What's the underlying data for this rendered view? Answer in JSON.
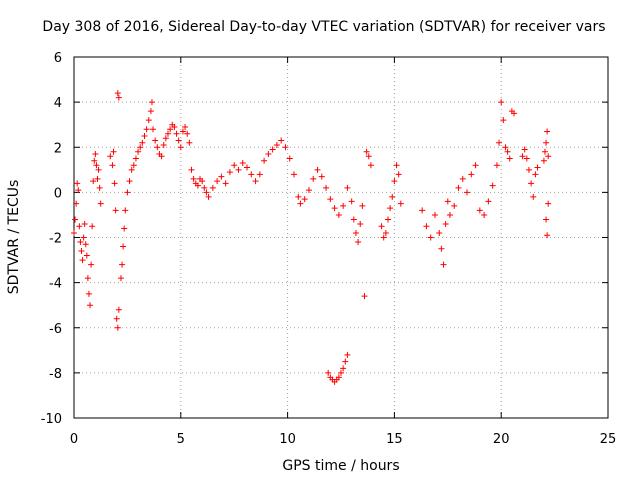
{
  "chart_data": {
    "type": "scatter",
    "title": "Day 308 of 2016, Sidereal Day-to-day VTEC variation (SDTVAR) for receiver vars",
    "xlabel": "GPS time / hours",
    "ylabel": "SDTVAR / TECUs",
    "xlim": [
      0,
      25
    ],
    "ylim": [
      -10,
      6
    ],
    "xticks": [
      0,
      5,
      10,
      15,
      20,
      25
    ],
    "yticks": [
      -10,
      -8,
      -6,
      -4,
      -2,
      0,
      2,
      4,
      6
    ],
    "grid": true,
    "marker": "+",
    "marker_color": "#ff0000",
    "series": [
      {
        "name": "SDTVAR",
        "points": [
          [
            0.0,
            -1.8
          ],
          [
            0.05,
            -1.2
          ],
          [
            0.1,
            -0.5
          ],
          [
            0.15,
            0.4
          ],
          [
            0.2,
            0.1
          ],
          [
            0.25,
            -1.5
          ],
          [
            0.3,
            -2.2
          ],
          [
            0.35,
            -2.6
          ],
          [
            0.4,
            -3.0
          ],
          [
            0.45,
            -2.0
          ],
          [
            0.5,
            -1.4
          ],
          [
            0.55,
            -2.3
          ],
          [
            0.6,
            -2.8
          ],
          [
            0.65,
            -3.8
          ],
          [
            0.7,
            -4.5
          ],
          [
            0.75,
            -5.0
          ],
          [
            0.8,
            -3.2
          ],
          [
            0.85,
            -1.5
          ],
          [
            0.9,
            0.5
          ],
          [
            0.95,
            1.4
          ],
          [
            1.0,
            1.7
          ],
          [
            1.05,
            1.2
          ],
          [
            1.1,
            0.6
          ],
          [
            1.15,
            1.0
          ],
          [
            1.2,
            0.2
          ],
          [
            1.25,
            -0.5
          ],
          [
            1.7,
            1.6
          ],
          [
            1.8,
            1.2
          ],
          [
            1.85,
            1.8
          ],
          [
            1.9,
            0.4
          ],
          [
            1.95,
            -0.8
          ],
          [
            2.0,
            -5.6
          ],
          [
            2.05,
            -6.0
          ],
          [
            2.1,
            -5.2
          ],
          [
            2.05,
            4.4
          ],
          [
            2.1,
            4.2
          ],
          [
            2.2,
            -3.8
          ],
          [
            2.25,
            -3.2
          ],
          [
            2.3,
            -2.4
          ],
          [
            2.35,
            -1.6
          ],
          [
            2.4,
            -0.8
          ],
          [
            2.5,
            0.0
          ],
          [
            2.6,
            0.5
          ],
          [
            2.7,
            1.0
          ],
          [
            2.8,
            1.2
          ],
          [
            2.9,
            1.5
          ],
          [
            3.0,
            1.8
          ],
          [
            3.1,
            2.0
          ],
          [
            3.2,
            2.2
          ],
          [
            3.3,
            2.5
          ],
          [
            3.4,
            2.8
          ],
          [
            3.5,
            3.2
          ],
          [
            3.6,
            3.6
          ],
          [
            3.65,
            4.0
          ],
          [
            3.7,
            2.8
          ],
          [
            3.8,
            2.3
          ],
          [
            3.9,
            2.0
          ],
          [
            4.0,
            1.7
          ],
          [
            4.1,
            1.6
          ],
          [
            4.2,
            2.1
          ],
          [
            4.3,
            2.4
          ],
          [
            4.4,
            2.6
          ],
          [
            4.5,
            2.8
          ],
          [
            4.6,
            3.0
          ],
          [
            4.7,
            2.9
          ],
          [
            4.8,
            2.6
          ],
          [
            4.9,
            2.3
          ],
          [
            5.0,
            2.0
          ],
          [
            5.1,
            2.7
          ],
          [
            5.2,
            2.9
          ],
          [
            5.3,
            2.6
          ],
          [
            5.4,
            2.2
          ],
          [
            5.5,
            1.0
          ],
          [
            5.6,
            0.6
          ],
          [
            5.7,
            0.4
          ],
          [
            5.8,
            0.3
          ],
          [
            5.9,
            0.6
          ],
          [
            6.0,
            0.5
          ],
          [
            6.1,
            0.2
          ],
          [
            6.2,
            0.0
          ],
          [
            6.3,
            -0.2
          ],
          [
            6.5,
            0.2
          ],
          [
            6.7,
            0.5
          ],
          [
            6.9,
            0.7
          ],
          [
            7.1,
            0.4
          ],
          [
            7.3,
            0.9
          ],
          [
            7.5,
            1.2
          ],
          [
            7.7,
            1.0
          ],
          [
            7.9,
            1.3
          ],
          [
            8.1,
            1.1
          ],
          [
            8.3,
            0.8
          ],
          [
            8.5,
            0.5
          ],
          [
            8.7,
            0.8
          ],
          [
            8.9,
            1.4
          ],
          [
            9.1,
            1.7
          ],
          [
            9.3,
            1.9
          ],
          [
            9.5,
            2.1
          ],
          [
            9.7,
            2.3
          ],
          [
            9.9,
            2.0
          ],
          [
            10.1,
            1.5
          ],
          [
            10.3,
            0.8
          ],
          [
            10.5,
            -0.2
          ],
          [
            10.6,
            -0.5
          ],
          [
            10.8,
            -0.3
          ],
          [
            11.0,
            0.1
          ],
          [
            11.2,
            0.6
          ],
          [
            11.4,
            1.0
          ],
          [
            11.6,
            0.7
          ],
          [
            11.8,
            0.2
          ],
          [
            12.0,
            -0.3
          ],
          [
            12.2,
            -0.7
          ],
          [
            12.4,
            -1.0
          ],
          [
            12.6,
            -0.6
          ],
          [
            12.8,
            0.2
          ],
          [
            13.0,
            -0.4
          ],
          [
            13.1,
            -1.2
          ],
          [
            13.2,
            -1.8
          ],
          [
            13.3,
            -2.2
          ],
          [
            13.4,
            -1.4
          ],
          [
            13.5,
            -0.6
          ],
          [
            13.6,
            -4.6
          ],
          [
            13.7,
            1.8
          ],
          [
            13.8,
            1.6
          ],
          [
            13.9,
            1.2
          ],
          [
            11.9,
            -8.0
          ],
          [
            12.0,
            -8.2
          ],
          [
            12.1,
            -8.3
          ],
          [
            12.2,
            -8.4
          ],
          [
            12.3,
            -8.3
          ],
          [
            12.4,
            -8.2
          ],
          [
            12.5,
            -8.0
          ],
          [
            12.6,
            -7.8
          ],
          [
            12.7,
            -7.5
          ],
          [
            12.8,
            -7.2
          ],
          [
            14.4,
            -1.5
          ],
          [
            14.5,
            -2.0
          ],
          [
            14.6,
            -1.8
          ],
          [
            14.7,
            -1.2
          ],
          [
            14.8,
            -0.7
          ],
          [
            14.9,
            -0.2
          ],
          [
            15.0,
            0.5
          ],
          [
            15.1,
            1.2
          ],
          [
            15.2,
            0.8
          ],
          [
            15.3,
            -0.5
          ],
          [
            16.3,
            -0.8
          ],
          [
            16.5,
            -1.5
          ],
          [
            16.7,
            -2.0
          ],
          [
            16.9,
            -1.0
          ],
          [
            17.1,
            -1.8
          ],
          [
            17.2,
            -2.5
          ],
          [
            17.3,
            -3.2
          ],
          [
            17.4,
            -1.4
          ],
          [
            17.5,
            -0.4
          ],
          [
            17.6,
            -1.0
          ],
          [
            17.8,
            -0.6
          ],
          [
            18.0,
            0.2
          ],
          [
            18.2,
            0.6
          ],
          [
            18.4,
            0.0
          ],
          [
            18.6,
            0.8
          ],
          [
            18.8,
            1.2
          ],
          [
            19.0,
            -0.8
          ],
          [
            19.2,
            -1.0
          ],
          [
            19.4,
            -0.4
          ],
          [
            19.6,
            0.3
          ],
          [
            19.8,
            1.2
          ],
          [
            19.9,
            2.2
          ],
          [
            20.0,
            4.0
          ],
          [
            20.1,
            3.2
          ],
          [
            20.2,
            2.0
          ],
          [
            20.3,
            1.8
          ],
          [
            20.4,
            1.5
          ],
          [
            20.5,
            3.6
          ],
          [
            20.6,
            3.5
          ],
          [
            21.0,
            1.6
          ],
          [
            21.1,
            1.9
          ],
          [
            21.2,
            1.5
          ],
          [
            21.3,
            1.0
          ],
          [
            21.4,
            0.4
          ],
          [
            21.5,
            -0.2
          ],
          [
            21.6,
            0.8
          ],
          [
            21.7,
            1.1
          ],
          [
            22.0,
            1.4
          ],
          [
            22.05,
            1.8
          ],
          [
            22.1,
            2.2
          ],
          [
            22.15,
            2.7
          ],
          [
            22.2,
            1.6
          ],
          [
            22.1,
            -1.2
          ],
          [
            22.15,
            -1.9
          ],
          [
            22.2,
            -0.5
          ]
        ]
      }
    ]
  }
}
